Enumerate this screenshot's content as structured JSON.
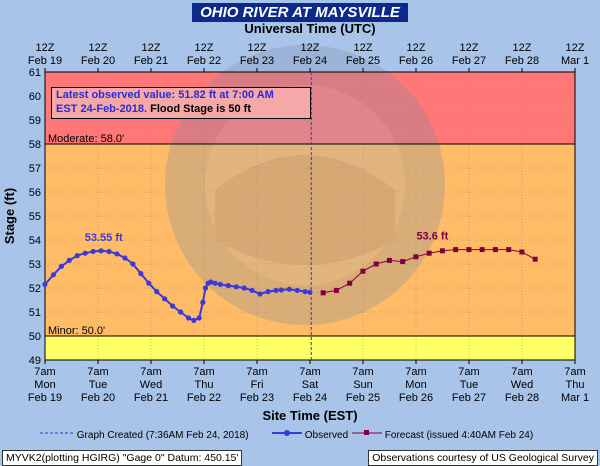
{
  "title": "OHIO RIVER AT MAYSVILLE",
  "info": {
    "line1": "Latest observed value: 51.82 ft at 7:00 AM",
    "line2a": "EST 24-Feb-2018.",
    "line2b": " Flood Stage is 50 ft"
  },
  "legend": {
    "created": "Graph Created (7:36AM Feb 24, 2018)",
    "observed": "Observed",
    "forecast": "Forecast (issued 4:40AM Feb 24)"
  },
  "footer": {
    "left": "MYVK2(plotting HGIRG) \"Gage 0\" Datum: 450.15'",
    "right": "Observations courtesy of US Geological Survey"
  },
  "colors": {
    "moderate_band": "#ff7777",
    "flood_band": "#ffbb66",
    "action_band": "#ffff66",
    "observed": "#3a3ad9",
    "forecast": "#800040",
    "background": "#a8c4e8"
  },
  "chart_data": {
    "type": "line",
    "x_unit": "days since Feb 19 00:00 EST",
    "xlabel_bottom": "Site Time (EST)",
    "xlabel_top": "Universal Time (UTC)",
    "ylabel": "Stage (ft)",
    "ylim": [
      49,
      61
    ],
    "xlim": [
      0.2917,
      10.2917
    ],
    "y_ticks": [
      49,
      50,
      51,
      52,
      53,
      54,
      55,
      56,
      57,
      58,
      59,
      60,
      61
    ],
    "bottom_ticks": [
      {
        "l1": "7am",
        "l2": "Mon",
        "l3": "Feb 19"
      },
      {
        "l1": "7am",
        "l2": "Tue",
        "l3": "Feb 20"
      },
      {
        "l1": "7am",
        "l2": "Wed",
        "l3": "Feb 21"
      },
      {
        "l1": "7am",
        "l2": "Thu",
        "l3": "Feb 22"
      },
      {
        "l1": "7am",
        "l2": "Fri",
        "l3": "Feb 23"
      },
      {
        "l1": "7am",
        "l2": "Sat",
        "l3": "Feb 24"
      },
      {
        "l1": "7am",
        "l2": "Sun",
        "l3": "Feb 25"
      },
      {
        "l1": "7am",
        "l2": "Mon",
        "l3": "Feb 26"
      },
      {
        "l1": "7am",
        "l2": "Tue",
        "l3": "Feb 27"
      },
      {
        "l1": "7am",
        "l2": "Wed",
        "l3": "Feb 28"
      },
      {
        "l1": "7am",
        "l2": "Thu",
        "l3": "Mar 1"
      }
    ],
    "top_ticks": [
      {
        "l1": "12Z",
        "l2": "Feb 19"
      },
      {
        "l1": "12Z",
        "l2": "Feb 20"
      },
      {
        "l1": "12Z",
        "l2": "Feb 21"
      },
      {
        "l1": "12Z",
        "l2": "Feb 22"
      },
      {
        "l1": "12Z",
        "l2": "Feb 23"
      },
      {
        "l1": "12Z",
        "l2": "Feb 24"
      },
      {
        "l1": "12Z",
        "l2": "Feb 25"
      },
      {
        "l1": "12Z",
        "l2": "Feb 26"
      },
      {
        "l1": "12Z",
        "l2": "Feb 27"
      },
      {
        "l1": "12Z",
        "l2": "Feb 28"
      },
      {
        "l1": "12Z",
        "l2": "Mar 1"
      }
    ],
    "thresholds": [
      {
        "name": "Moderate",
        "label": "Moderate: 58.0'",
        "value": 58.0
      },
      {
        "name": "Minor",
        "label": "Minor: 50.0'",
        "value": 50.0
      }
    ],
    "graph_created_x": 5.3167,
    "annotations": [
      {
        "text": "53.55 ft",
        "x": 1.4,
        "y": 53.55,
        "series": "Observed"
      },
      {
        "text": "53.6 ft",
        "x": 7.6,
        "y": 53.6,
        "series": "Forecast"
      }
    ],
    "series": [
      {
        "name": "Observed",
        "x": [
          0.29,
          0.45,
          0.6,
          0.75,
          0.9,
          1.05,
          1.2,
          1.35,
          1.5,
          1.65,
          1.8,
          1.95,
          2.1,
          2.25,
          2.4,
          2.55,
          2.7,
          2.85,
          3.0,
          3.1,
          3.2,
          3.27,
          3.32,
          3.37,
          3.42,
          3.5,
          3.6,
          3.75,
          3.9,
          4.05,
          4.2,
          4.35,
          4.5,
          4.65,
          4.75,
          4.9,
          5.05,
          5.2,
          5.29
        ],
        "y": [
          52.15,
          52.55,
          52.9,
          53.15,
          53.35,
          53.45,
          53.52,
          53.55,
          53.52,
          53.42,
          53.25,
          53.0,
          52.6,
          52.2,
          51.85,
          51.55,
          51.25,
          51.0,
          50.75,
          50.65,
          50.75,
          51.4,
          52.0,
          52.2,
          52.25,
          52.2,
          52.15,
          52.1,
          52.05,
          52.0,
          51.9,
          51.75,
          51.85,
          51.9,
          51.92,
          51.95,
          51.9,
          51.85,
          51.82
        ]
      },
      {
        "name": "Forecast",
        "x": [
          5.54,
          5.79,
          6.04,
          6.29,
          6.54,
          6.79,
          7.04,
          7.29,
          7.54,
          7.79,
          8.04,
          8.29,
          8.54,
          8.79,
          9.04,
          9.29,
          9.54
        ],
        "y": [
          51.8,
          51.9,
          52.2,
          52.7,
          53.0,
          53.15,
          53.1,
          53.3,
          53.45,
          53.55,
          53.6,
          53.6,
          53.6,
          53.6,
          53.6,
          53.5,
          53.2
        ]
      }
    ]
  }
}
